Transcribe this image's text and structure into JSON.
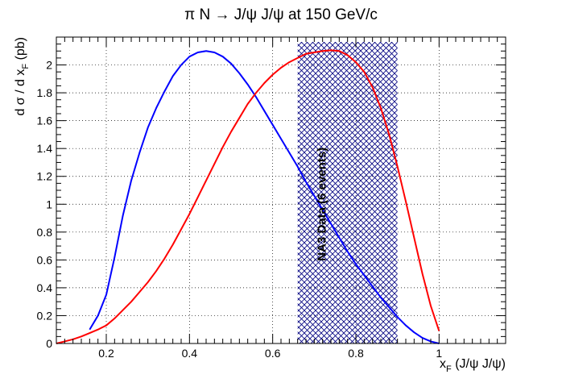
{
  "chart_data": {
    "type": "line",
    "title": "π N → J/ψ J/ψ at 150 GeV/c",
    "xlabel": {
      "main": "x",
      "sub": "F",
      "rest": " (J/ψ J/ψ)"
    },
    "ylabel": {
      "main": "d σ / d x",
      "sub": "F",
      "rest": " (pb)"
    },
    "xlim": [
      0.08,
      1.16
    ],
    "ylim": [
      0,
      2.2
    ],
    "xticks": [
      0.2,
      0.4,
      0.6,
      0.8,
      1
    ],
    "xtick_labels": [
      "0.2",
      "0.4",
      "0.6",
      "0.8",
      "1"
    ],
    "yticks": [
      0,
      0.2,
      0.4,
      0.6,
      0.8,
      1,
      1.2,
      1.4,
      1.6,
      1.8,
      2
    ],
    "ytick_labels": [
      "0",
      "0.2",
      "0.4",
      "0.6",
      "0.8",
      "1",
      "1.2",
      "1.4",
      "1.6",
      "1.8",
      "2"
    ],
    "grid": true,
    "band": {
      "x0": 0.66,
      "x1": 0.9,
      "label": "NA3 Data (6 events)",
      "color": "#000080"
    },
    "series": [
      {
        "name": "blue-curve",
        "color": "#0000ff",
        "points": [
          [
            0.16,
            0.1
          ],
          [
            0.18,
            0.2
          ],
          [
            0.2,
            0.35
          ],
          [
            0.22,
            0.62
          ],
          [
            0.24,
            0.92
          ],
          [
            0.26,
            1.17
          ],
          [
            0.28,
            1.37
          ],
          [
            0.3,
            1.55
          ],
          [
            0.32,
            1.69
          ],
          [
            0.34,
            1.81
          ],
          [
            0.36,
            1.92
          ],
          [
            0.38,
            2.0
          ],
          [
            0.4,
            2.06
          ],
          [
            0.42,
            2.09
          ],
          [
            0.44,
            2.1
          ],
          [
            0.46,
            2.09
          ],
          [
            0.48,
            2.06
          ],
          [
            0.5,
            2.01
          ],
          [
            0.52,
            1.94
          ],
          [
            0.54,
            1.86
          ],
          [
            0.56,
            1.77
          ],
          [
            0.58,
            1.67
          ],
          [
            0.6,
            1.57
          ],
          [
            0.62,
            1.47
          ],
          [
            0.64,
            1.37
          ],
          [
            0.66,
            1.27
          ],
          [
            0.68,
            1.16
          ],
          [
            0.7,
            1.06
          ],
          [
            0.72,
            0.96
          ],
          [
            0.74,
            0.86
          ],
          [
            0.76,
            0.76
          ],
          [
            0.78,
            0.66
          ],
          [
            0.8,
            0.57
          ],
          [
            0.82,
            0.49
          ],
          [
            0.84,
            0.41
          ],
          [
            0.86,
            0.33
          ],
          [
            0.88,
            0.26
          ],
          [
            0.9,
            0.19
          ],
          [
            0.92,
            0.13
          ],
          [
            0.94,
            0.08
          ],
          [
            0.96,
            0.04
          ],
          [
            0.98,
            0.015
          ],
          [
            1.0,
            0.0
          ]
        ]
      },
      {
        "name": "red-curve",
        "color": "#ff0000",
        "points": [
          [
            0.08,
            0.0
          ],
          [
            0.1,
            0.015
          ],
          [
            0.12,
            0.03
          ],
          [
            0.14,
            0.05
          ],
          [
            0.16,
            0.075
          ],
          [
            0.18,
            0.1
          ],
          [
            0.2,
            0.13
          ],
          [
            0.22,
            0.18
          ],
          [
            0.24,
            0.24
          ],
          [
            0.26,
            0.3
          ],
          [
            0.28,
            0.37
          ],
          [
            0.3,
            0.44
          ],
          [
            0.32,
            0.52
          ],
          [
            0.34,
            0.61
          ],
          [
            0.36,
            0.71
          ],
          [
            0.38,
            0.82
          ],
          [
            0.4,
            0.93
          ],
          [
            0.42,
            1.05
          ],
          [
            0.44,
            1.17
          ],
          [
            0.46,
            1.29
          ],
          [
            0.48,
            1.41
          ],
          [
            0.5,
            1.52
          ],
          [
            0.52,
            1.62
          ],
          [
            0.54,
            1.72
          ],
          [
            0.56,
            1.8
          ],
          [
            0.58,
            1.87
          ],
          [
            0.6,
            1.93
          ],
          [
            0.62,
            1.98
          ],
          [
            0.64,
            2.02
          ],
          [
            0.66,
            2.05
          ],
          [
            0.68,
            2.08
          ],
          [
            0.7,
            2.09
          ],
          [
            0.72,
            2.1
          ],
          [
            0.74,
            2.105
          ],
          [
            0.76,
            2.1
          ],
          [
            0.78,
            2.07
          ],
          [
            0.8,
            2.02
          ],
          [
            0.82,
            1.95
          ],
          [
            0.84,
            1.84
          ],
          [
            0.86,
            1.69
          ],
          [
            0.88,
            1.5
          ],
          [
            0.9,
            1.27
          ],
          [
            0.92,
            1.02
          ],
          [
            0.94,
            0.76
          ],
          [
            0.96,
            0.5
          ],
          [
            0.98,
            0.27
          ],
          [
            1.0,
            0.09
          ]
        ]
      }
    ]
  }
}
